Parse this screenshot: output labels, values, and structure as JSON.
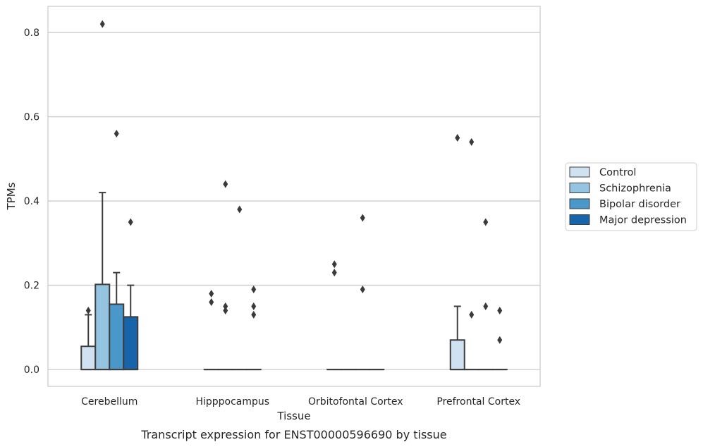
{
  "caption": "Transcript expression for ENST00000596690 by tissue",
  "chart_data": {
    "type": "box",
    "xlabel": "Tissue",
    "ylabel": "TPMs",
    "ylim": [
      -0.04,
      0.862
    ],
    "yticks": [
      0.0,
      0.2,
      0.4,
      0.6,
      0.8
    ],
    "ytick_labels": [
      "0.0",
      "0.2",
      "0.4",
      "0.6",
      "0.8"
    ],
    "grid": true,
    "legend_position": "right",
    "categories": [
      "Cerebellum",
      "Hipppocampus",
      "Orbitofontal Cortex",
      "Prefrontal Cortex"
    ],
    "series": [
      {
        "name": "Control",
        "color": "#d0e1f2",
        "boxes": [
          {
            "q1": 0.0,
            "median": 0.0,
            "q3": 0.055,
            "whisker_low": 0.0,
            "whisker_high": 0.13,
            "outliers": [
              0.14
            ]
          },
          {
            "q1": 0.0,
            "median": 0.0,
            "q3": 0.0,
            "whisker_low": 0.0,
            "whisker_high": 0.0,
            "outliers": [
              0.16,
              0.18
            ]
          },
          {
            "q1": 0.0,
            "median": 0.0,
            "q3": 0.0,
            "whisker_low": 0.0,
            "whisker_high": 0.0,
            "outliers": [
              0.23,
              0.25
            ]
          },
          {
            "q1": 0.0,
            "median": 0.0,
            "q3": 0.07,
            "whisker_low": 0.0,
            "whisker_high": 0.15,
            "outliers": [
              0.55
            ]
          }
        ]
      },
      {
        "name": "Schizophrenia",
        "color": "#94c4df",
        "boxes": [
          {
            "q1": 0.0,
            "median": 0.0,
            "q3": 0.202,
            "whisker_low": 0.0,
            "whisker_high": 0.42,
            "outliers": [
              0.82
            ]
          },
          {
            "q1": 0.0,
            "median": 0.0,
            "q3": 0.0,
            "whisker_low": 0.0,
            "whisker_high": 0.0,
            "outliers": [
              0.14,
              0.15,
              0.44
            ]
          },
          {
            "q1": 0.0,
            "median": 0.0,
            "q3": 0.0,
            "whisker_low": 0.0,
            "whisker_high": 0.0,
            "outliers": []
          },
          {
            "q1": 0.0,
            "median": 0.0,
            "q3": 0.0,
            "whisker_low": 0.0,
            "whisker_high": 0.0,
            "outliers": [
              0.13,
              0.54
            ]
          }
        ]
      },
      {
        "name": "Bipolar disorder",
        "color": "#4a98c9",
        "boxes": [
          {
            "q1": 0.0,
            "median": 0.0,
            "q3": 0.155,
            "whisker_low": 0.0,
            "whisker_high": 0.23,
            "outliers": [
              0.56
            ]
          },
          {
            "q1": 0.0,
            "median": 0.0,
            "q3": 0.0,
            "whisker_low": 0.0,
            "whisker_high": 0.0,
            "outliers": [
              0.38
            ]
          },
          {
            "q1": 0.0,
            "median": 0.0,
            "q3": 0.0,
            "whisker_low": 0.0,
            "whisker_high": 0.0,
            "outliers": [
              0.19,
              0.36
            ]
          },
          {
            "q1": 0.0,
            "median": 0.0,
            "q3": 0.0,
            "whisker_low": 0.0,
            "whisker_high": 0.0,
            "outliers": [
              0.15,
              0.35
            ]
          }
        ]
      },
      {
        "name": "Major depression",
        "color": "#1764ab",
        "boxes": [
          {
            "q1": 0.0,
            "median": 0.0,
            "q3": 0.125,
            "whisker_low": 0.0,
            "whisker_high": 0.2,
            "outliers": [
              0.35
            ]
          },
          {
            "q1": 0.0,
            "median": 0.0,
            "q3": 0.0,
            "whisker_low": 0.0,
            "whisker_high": 0.0,
            "outliers": [
              0.13,
              0.15,
              0.19
            ]
          },
          {
            "q1": 0.0,
            "median": 0.0,
            "q3": 0.0,
            "whisker_low": 0.0,
            "whisker_high": 0.0,
            "outliers": []
          },
          {
            "q1": 0.0,
            "median": 0.0,
            "q3": 0.0,
            "whisker_low": 0.0,
            "whisker_high": 0.0,
            "outliers": [
              0.07,
              0.14
            ]
          }
        ]
      }
    ]
  }
}
